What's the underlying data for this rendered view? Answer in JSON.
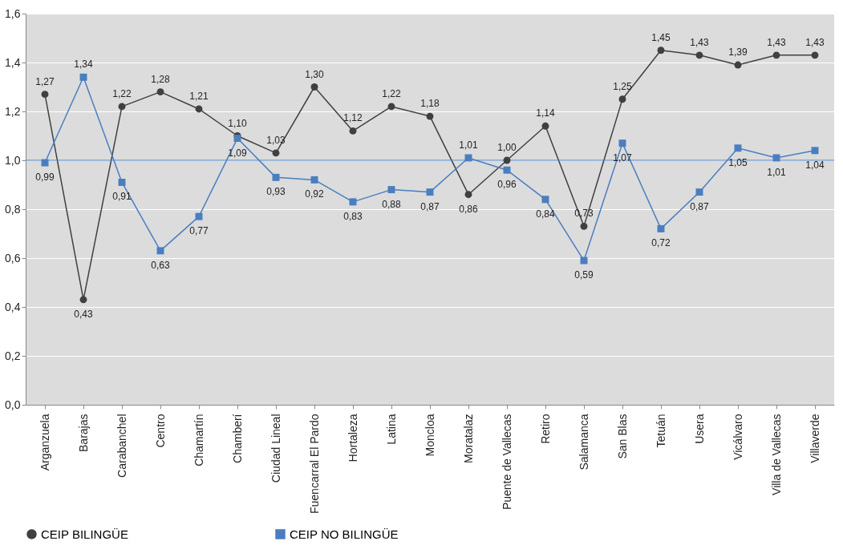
{
  "chart_data": {
    "type": "line",
    "categories": [
      "Arganzuela",
      "Barajas",
      "Carabanchel",
      "Centro",
      "Chamartín",
      "Chamberí",
      "Ciudad Lineal",
      "Fuencarral El Pardo",
      "Hortaleza",
      "Latina",
      "Moncloa",
      "Moratalaz",
      "Puente de Vallecas",
      "Retiro",
      "Salamanca",
      "San Blas",
      "Tetuán",
      "Usera",
      "Vicálvaro",
      "Villa de Vallecas",
      "Villaverde"
    ],
    "series": [
      {
        "name": "CEIP BILINGÜE",
        "color": "#404040",
        "marker": "circle",
        "values": [
          1.27,
          0.43,
          1.22,
          1.28,
          1.21,
          1.1,
          1.03,
          1.3,
          1.12,
          1.22,
          1.18,
          0.86,
          1.0,
          1.14,
          0.73,
          1.25,
          1.45,
          1.43,
          1.39,
          1.43,
          1.43
        ],
        "value_labels": [
          "1,27",
          "0,43",
          "1,22",
          "1,28",
          "1,21",
          "1,10",
          "1,03",
          "1,30",
          "1,12",
          "1,22",
          "1,18",
          "0,86",
          "1,00",
          "1,14",
          "0,73",
          "1,25",
          "1,45",
          "1,43",
          "1,39",
          "1,43",
          "1,43"
        ]
      },
      {
        "name": "CEIP NO BILINGÜE",
        "color": "#4a7ebf",
        "marker": "square",
        "values": [
          0.99,
          1.34,
          0.91,
          0.63,
          0.77,
          1.09,
          0.93,
          0.92,
          0.83,
          0.88,
          0.87,
          1.01,
          0.96,
          0.84,
          0.59,
          1.07,
          0.72,
          0.87,
          1.05,
          1.01,
          1.04
        ],
        "value_labels": [
          "0,99",
          "1,34",
          "0,91",
          "0,63",
          "0,77",
          "1,09",
          "0,93",
          "0,92",
          "0,83",
          "0,88",
          "0,87",
          "1,01",
          "0,96",
          "0,84",
          "0,59",
          "1,07",
          "0,72",
          "0,87",
          "1,05",
          "1,01",
          "1,04"
        ]
      }
    ],
    "ylim": [
      0,
      1.6
    ],
    "yticks": [
      {
        "value": 0,
        "label": "0,0"
      },
      {
        "value": 0.2,
        "label": "0,2"
      },
      {
        "value": 0.4,
        "label": "0,4"
      },
      {
        "value": 0.6,
        "label": "0,6"
      },
      {
        "value": 0.8,
        "label": "0,8"
      },
      {
        "value": 1.0,
        "label": "1,0"
      },
      {
        "value": 1.2,
        "label": "1,2"
      },
      {
        "value": 1.4,
        "label": "1,4"
      },
      {
        "value": 1.6,
        "label": "1,6"
      }
    ],
    "ref_lines": [
      {
        "axis": "y",
        "value": 1.0,
        "color": "#4a7ebf",
        "line_style": "solid"
      }
    ],
    "grid": "y",
    "legend": "bottom",
    "line_style": "solid"
  }
}
